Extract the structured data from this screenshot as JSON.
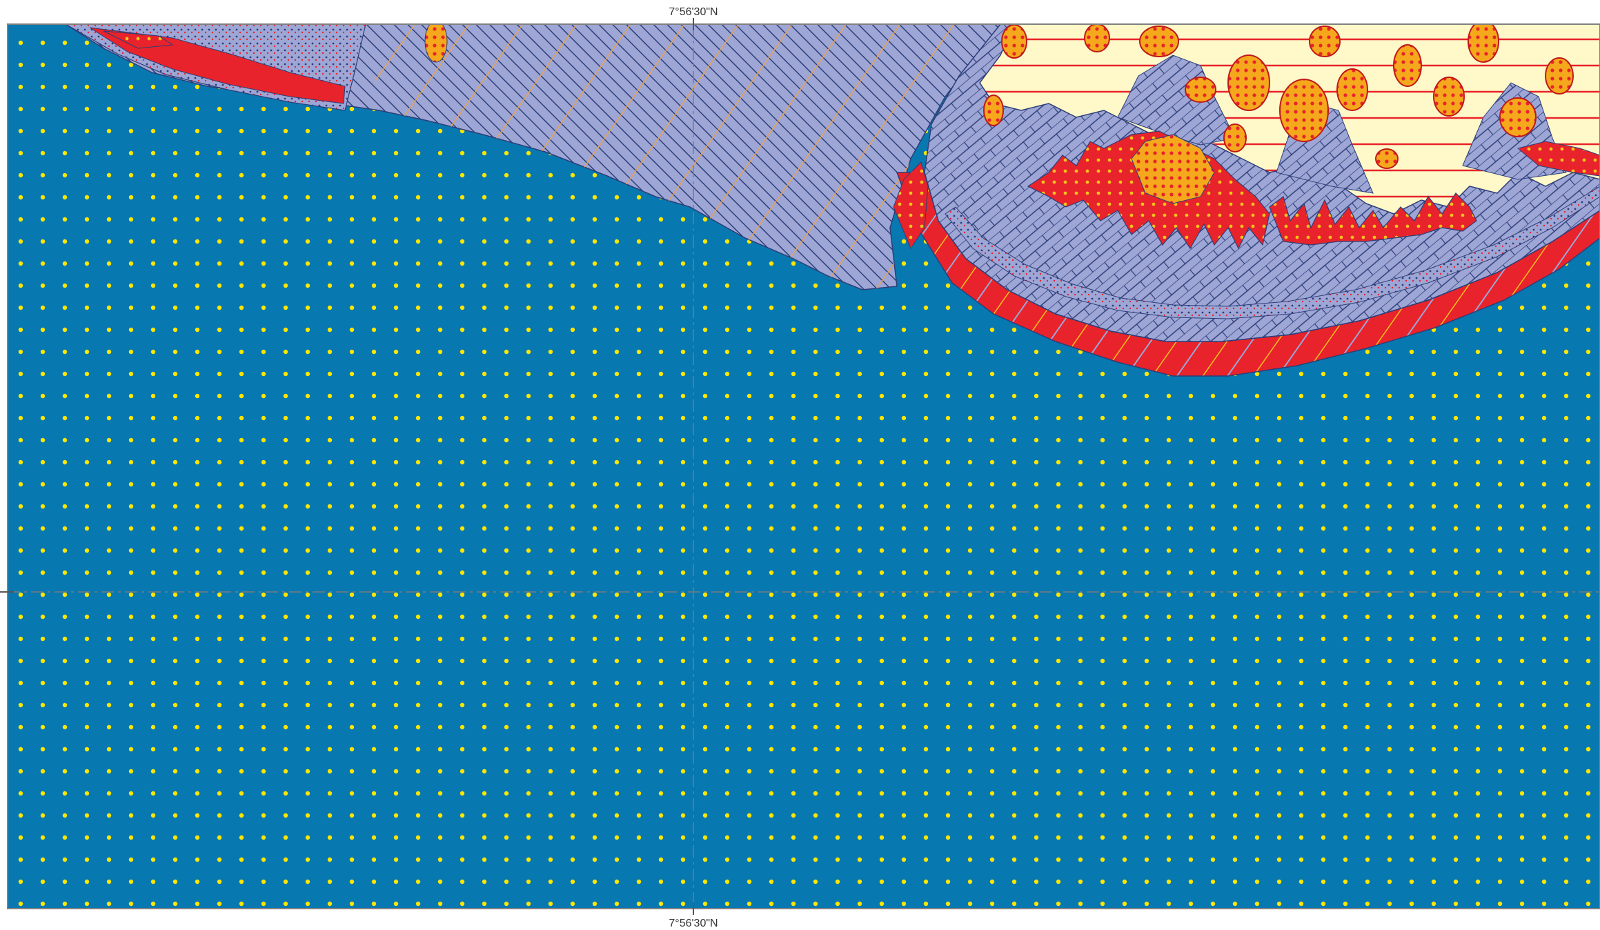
{
  "map": {
    "coordinate_labels": {
      "top": "7°56'30\"N",
      "bottom": "7°56'30\"N"
    },
    "colors": {
      "sea": "#0878b0",
      "sea_dots": "#ffe600",
      "hatched_unit": "#9ea6d6",
      "hatch_dark": "#2c3e78",
      "hatch_orange": "#e8a050",
      "bright_red": "#e8232b",
      "orange_yellow": "#f5a81c",
      "cream": "#fff8c8",
      "graticule": "#7a7a7a",
      "frame": "#808080"
    },
    "legend": []
  }
}
